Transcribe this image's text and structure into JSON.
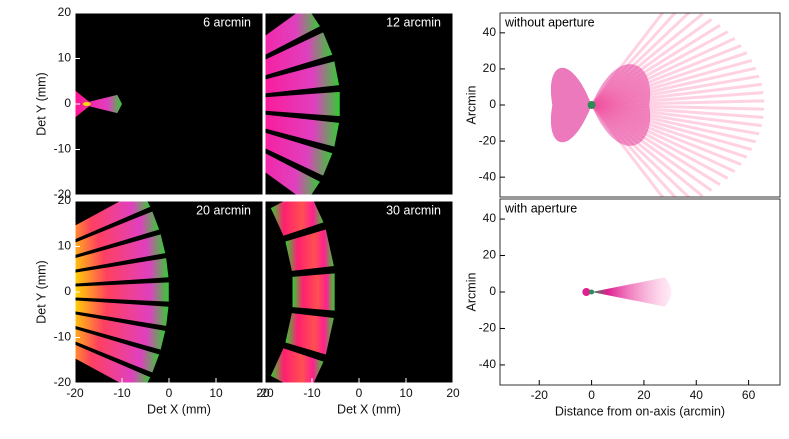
{
  "chart_data": [
    {
      "type": "image",
      "annotation": "6 arcmin",
      "xlim": [
        -20,
        20
      ],
      "ylim": [
        -20,
        20
      ],
      "yticks": [
        20,
        10,
        0,
        -10,
        -20
      ],
      "ylabel": "Det Y (mm)"
    },
    {
      "type": "image",
      "annotation": "12 arcmin",
      "xlim": [
        -20,
        20
      ],
      "ylim": [
        -20,
        20
      ]
    },
    {
      "type": "image",
      "annotation": "20 arcmin",
      "xlim": [
        -20,
        20
      ],
      "ylim": [
        -20,
        20
      ],
      "yticks": [
        20,
        10,
        0,
        -10,
        -20
      ],
      "xticks": [
        -20,
        -10,
        0,
        10,
        20
      ],
      "xlabel": "Det X (mm)",
      "ylabel": "Det Y (mm)"
    },
    {
      "type": "image",
      "annotation": "30 arcmin",
      "xlim": [
        -20,
        20
      ],
      "ylim": [
        -20,
        20
      ],
      "xticks": [
        -20,
        -10,
        0,
        10,
        20
      ],
      "xlabel": "Det X (mm)"
    },
    {
      "type": "image",
      "annotation": "without aperture",
      "xlim": [
        -35,
        72
      ],
      "ylim": [
        -51,
        51
      ],
      "yticks": [
        40,
        20,
        0,
        -20,
        -40
      ],
      "ylabel": "Arcmin"
    },
    {
      "type": "image",
      "annotation": "with aperture",
      "xlim": [
        -35,
        72
      ],
      "ylim": [
        -51,
        51
      ],
      "yticks": [
        40,
        20,
        0,
        -20,
        -40
      ],
      "xticks": [
        -20,
        0,
        20,
        40,
        60
      ],
      "xlabel": "Distance from on-axis (arcmin)",
      "ylabel": "Arcmin"
    }
  ]
}
